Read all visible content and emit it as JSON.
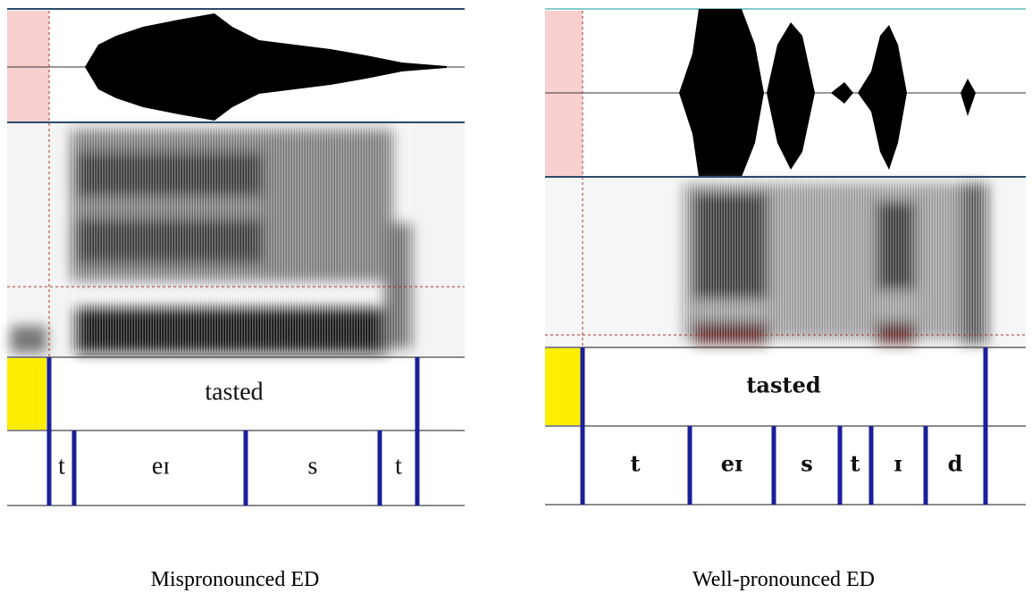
{
  "panels": [
    {
      "word": "tasted",
      "phones": [
        "t",
        "eɪ",
        "s",
        "t"
      ],
      "caption": "Mispronounced ED"
    },
    {
      "word": "tasted",
      "phones": [
        "t",
        "eɪ",
        "s",
        "t",
        "ɪ",
        "d"
      ],
      "caption": "Well-pronounced ED"
    }
  ]
}
